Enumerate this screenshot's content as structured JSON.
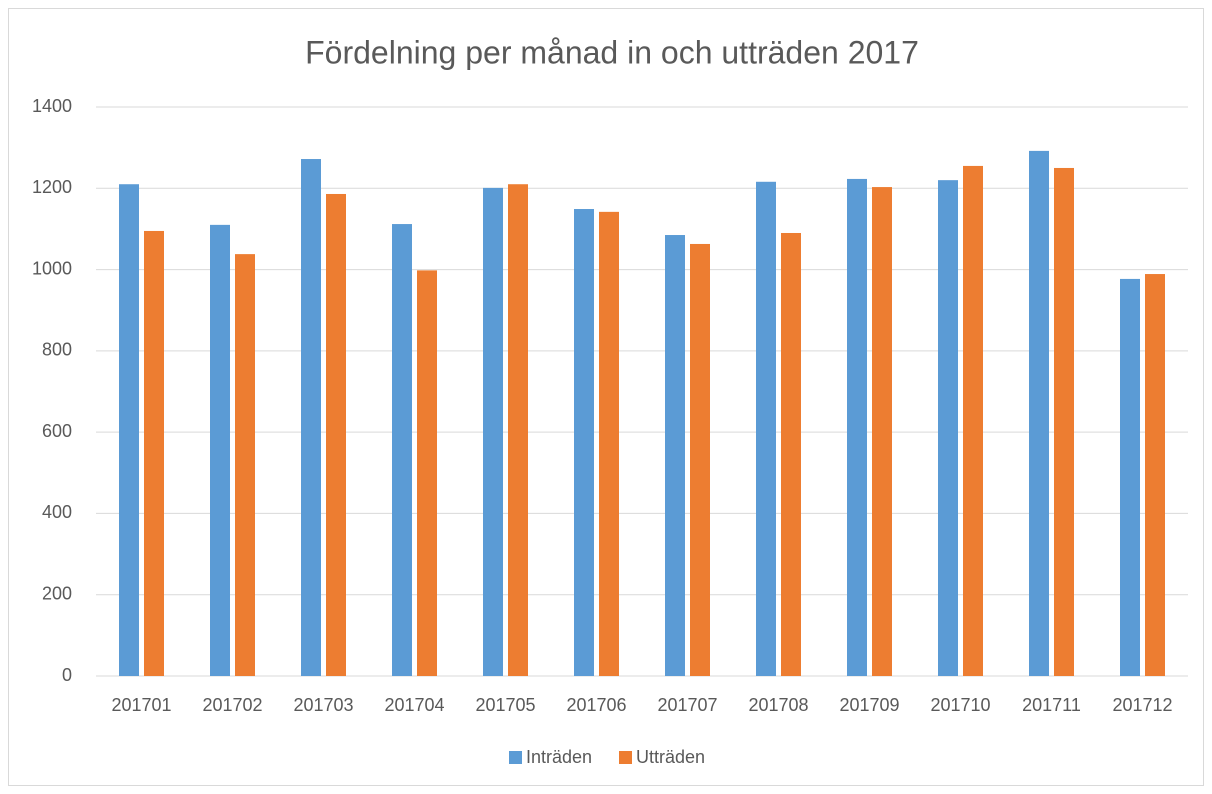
{
  "chart_data": {
    "type": "bar",
    "title": "Fördelning per månad in och utträden 2017",
    "categories": [
      "201701",
      "201702",
      "201703",
      "201704",
      "201705",
      "201706",
      "201707",
      "201708",
      "201709",
      "201710",
      "201711",
      "201712"
    ],
    "series": [
      {
        "name": "Inträden",
        "color": "#5b9bd5",
        "values": [
          1210,
          1110,
          1272,
          1112,
          1201,
          1149,
          1085,
          1216,
          1223,
          1220,
          1292,
          977
        ]
      },
      {
        "name": "Utträden",
        "color": "#ed7d31",
        "values": [
          1095,
          1038,
          1186,
          998,
          1210,
          1142,
          1063,
          1090,
          1203,
          1255,
          1250,
          989
        ]
      }
    ],
    "ylim": [
      0,
      1400
    ],
    "yticks": [
      0,
      200,
      400,
      600,
      800,
      1000,
      1200,
      1400
    ],
    "grid": true,
    "legend": "bottom"
  }
}
